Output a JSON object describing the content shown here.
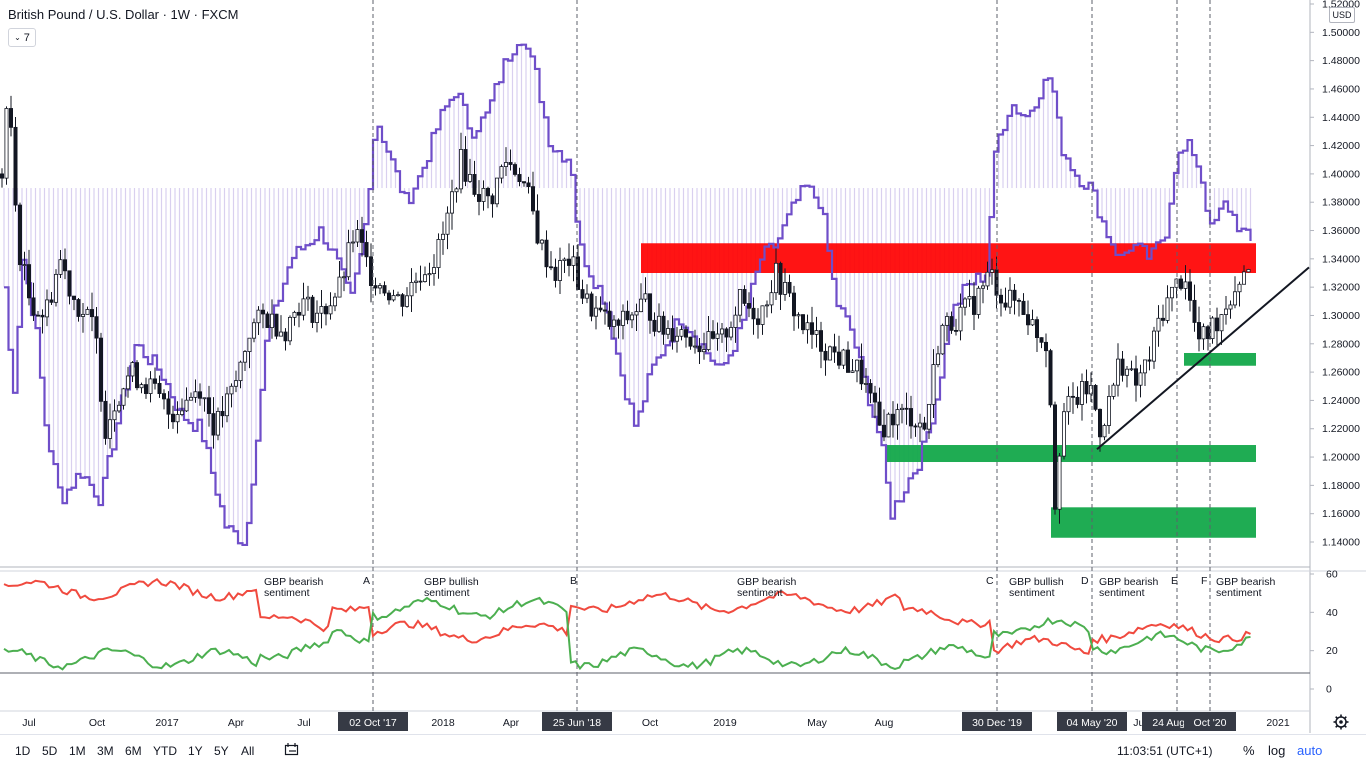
{
  "header": {
    "title": "British Pound / U.S. Dollar · 1W · FXCM",
    "interval_button": "7",
    "currency_badge": "USD"
  },
  "chart_data": [
    {
      "type": "candlestick",
      "title": "British Pound / U.S. Dollar · 1W · FXCM",
      "y_axis_ticks": [
        "1.52000",
        "1.50000",
        "1.48000",
        "1.46000",
        "1.44000",
        "1.42000",
        "1.40000",
        "1.38000",
        "1.36000",
        "1.34000",
        "1.32000",
        "1.30000",
        "1.28000",
        "1.26000",
        "1.24000",
        "1.22000",
        "1.20000",
        "1.18000",
        "1.16000",
        "1.14000"
      ],
      "ylim": [
        1.132,
        1.52
      ],
      "x_axis_labels": [
        "Jul",
        "Oct",
        "2017",
        "Apr",
        "Jul",
        "2018",
        "Apr",
        "Oct",
        "2019",
        "May",
        "Aug",
        "Jul",
        "2021"
      ],
      "x_axis_labels_positions": [
        29,
        97,
        167,
        236,
        304,
        443,
        511,
        650,
        725,
        817,
        884,
        1140,
        1278
      ],
      "highlighted_dates": [
        {
          "label": "02 Oct '17",
          "x": 373
        },
        {
          "label": "25 Jun '18",
          "x": 577
        },
        {
          "label": "30 Dec '19",
          "x": 997
        },
        {
          "label": "04 May '20",
          "x": 1092
        },
        {
          "label": "24 Aug '20",
          "x": 1177
        },
        {
          "label": "Oct '20",
          "x": 1210
        }
      ],
      "price_ohlc_weekly": [],
      "zones": [
        {
          "kind": "resistance",
          "color": "#ff0000",
          "from_x": 641,
          "to_x": 1256,
          "low": 1.33,
          "high": 1.351
        },
        {
          "kind": "support",
          "color": "#13a84a",
          "from_x": 1184,
          "to_x": 1256,
          "low": 1.2645,
          "high": 1.2735
        },
        {
          "kind": "support",
          "color": "#13a84a",
          "from_x": 885,
          "to_x": 1256,
          "low": 1.1965,
          "high": 1.2085
        },
        {
          "kind": "support",
          "color": "#13a84a",
          "from_x": 1051,
          "to_x": 1256,
          "low": 1.143,
          "high": 1.1645
        }
      ],
      "trendline": {
        "from": {
          "x": 1097,
          "y": 1.2055
        },
        "to": {
          "x": 1309,
          "y": 1.334
        }
      },
      "cot_overlay_color": "#6f4ec9",
      "cot_fill_color": "#d9d0ef"
    },
    {
      "type": "line",
      "title": "",
      "y_axis_ticks": [
        "60",
        "40",
        "20",
        "0"
      ],
      "ylim": [
        -10,
        64
      ],
      "series": [
        {
          "color": "#f04a3f"
        },
        {
          "color": "#4caf50"
        }
      ],
      "annotations": [
        {
          "label": "GBP bearish\nsentiment",
          "x": 264
        },
        {
          "label": "GBP bullish\nsentiment",
          "x": 424
        },
        {
          "label": "GBP bearish\nsentiment",
          "x": 737
        },
        {
          "label": "GBP bullish\nsentiment",
          "x": 1009
        },
        {
          "label": "GBP bearish\nsentiment",
          "x": 1099
        },
        {
          "label": "GBP bearish\nsentiment",
          "x": 1216
        }
      ],
      "markers": [
        {
          "letter": "A",
          "x": 363
        },
        {
          "letter": "B",
          "x": 570
        },
        {
          "letter": "C",
          "x": 986
        },
        {
          "letter": "D",
          "x": 1081
        },
        {
          "letter": "E",
          "x": 1171
        },
        {
          "letter": "F",
          "x": 1201
        }
      ]
    }
  ],
  "bottom_bar": {
    "timeframes": [
      "1D",
      "5D",
      "1M",
      "3M",
      "6M",
      "YTD",
      "1Y",
      "5Y",
      "All"
    ],
    "clock": "11:03:51 (UTC+1)",
    "percent": "%",
    "log": "log",
    "auto": "auto"
  }
}
